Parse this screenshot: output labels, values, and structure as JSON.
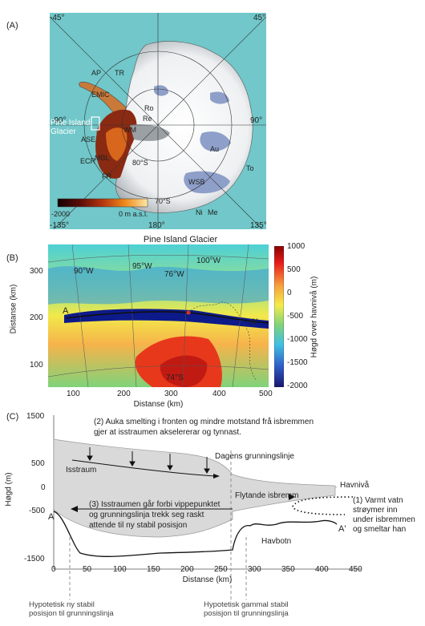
{
  "panel_a": {
    "letter": "(A)",
    "lon_labels": [
      "-45°",
      "45°",
      "-90°",
      "90°",
      "-135°",
      "180°",
      "135°"
    ],
    "lat_labels": [
      "80°S",
      "70°S"
    ],
    "region_labels": [
      "AP",
      "TR",
      "EMIC",
      "Ro",
      "Re",
      "WM",
      "ASE",
      "Au",
      "ECR",
      "MBL",
      "FR",
      "WSB",
      "To",
      "Ni",
      "Me"
    ],
    "highlight_label": "Pine Island\nGlacier",
    "colorbar": {
      "min_label": "-2000",
      "max_label": "0 m a.s.l."
    },
    "colors": {
      "ocean": "#71c7c9",
      "ice": "#f3f5f6",
      "basin": "#8e9fc9",
      "land_dark": "#7a1e12"
    }
  },
  "panel_b": {
    "letter": "(B)",
    "title": "Pine Island Glacier",
    "ylabel": "Distanse (km)",
    "xlabel": "Distanse (km)",
    "xticks": [
      "100",
      "200",
      "300",
      "400",
      "500"
    ],
    "yticks": [
      "300",
      "200",
      "100"
    ],
    "lon_labels": [
      "90°W",
      "95°W",
      "76°W",
      "100°W"
    ],
    "lat_label": "74°S",
    "profile_start": "A",
    "profile_end": "A'",
    "colorbar_label": "Høgd over havnivå (m)",
    "colorbar_ticks": [
      "1000",
      "500",
      "0",
      "-500",
      "-1000",
      "-1500",
      "-2000"
    ]
  },
  "panel_c": {
    "letter": "(C)",
    "ylabel": "Høgd (m)",
    "xlabel": "Distanse (km)",
    "yticks": [
      "1500",
      "500",
      "0",
      "-500",
      "-1500"
    ],
    "xticks": [
      "0",
      "50",
      "100",
      "150",
      "200",
      "250",
      "300",
      "350",
      "400",
      "450"
    ],
    "label_a": "A",
    "label_a_prime": "A'",
    "note2": "(2) Auka smelting i fronten og mindre motstand frå isbremmen\ngjer at isstraumen akselererar og tynnast.",
    "note3": "(3) Isstraumen går forbi vippepunktet\nog grunningslinja trekk seg raskt\nattende til ny stabil posisjon",
    "note1": "(1) Varmt vatn\nstrøymer inn\nunder isbremmen\nog smeltar han",
    "isstraum": "Isstraum",
    "dagens": "Dagens grunningslinje",
    "havniva": "Havnivå",
    "flytande": "Flytande isbremm",
    "havbotn": "Havbotn",
    "ny_stabil": "Hypotetisk ny stabil\nposisjon til grunningslinja",
    "gammal_stabil": "Hypotetisk gammal stabil\nposisjon til grunningslinja"
  }
}
